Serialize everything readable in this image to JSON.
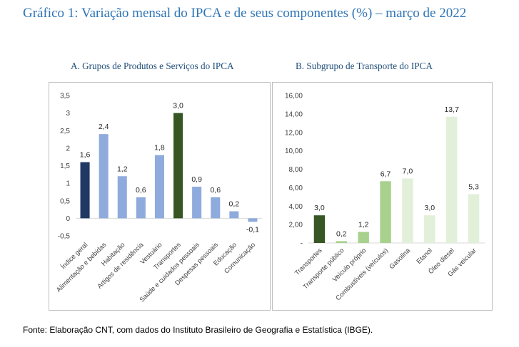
{
  "title": "Gráfico 1: Variação mensal do IPCA e de seus componentes (%) – março de 2022",
  "source": "Fonte: Elaboração CNT, com dados do Instituto Brasileiro de Geografia e Estatística (IBGE).",
  "chart_data": [
    {
      "type": "bar",
      "title": "A. Grupos de Produtos e Serviços do IPCA",
      "xlabel": "",
      "ylabel": "",
      "categories": [
        "Índice geral",
        "Alimentação e bebidas",
        "Habitação",
        "Artigos de residência",
        "Vestuário",
        "Transportes",
        "Saúde e cuidados pessoais",
        "Despesas pessoais",
        "Educação",
        "Comunicação"
      ],
      "values": [
        1.6,
        2.4,
        1.2,
        0.6,
        1.8,
        3.0,
        0.9,
        0.6,
        0.2,
        -0.1
      ],
      "value_labels": [
        "1,6",
        "2,4",
        "1,2",
        "0,6",
        "1,8",
        "3,0",
        "0,9",
        "0,6",
        "0,2",
        "-0,1"
      ],
      "colors": [
        "#1f3864",
        "#8faadc",
        "#8faadc",
        "#8faadc",
        "#8faadc",
        "#375623",
        "#8faadc",
        "#8faadc",
        "#8faadc",
        "#8faadc"
      ],
      "ylim": [
        -0.5,
        3.5
      ],
      "yticks": [
        3.5,
        3,
        2.5,
        2,
        1.5,
        1,
        0.5,
        0,
        -0.5
      ],
      "ytick_labels": [
        "3,5",
        "3",
        "2,5",
        "2",
        "1,5",
        "1",
        "0,5",
        "0",
        "-0,5"
      ],
      "grid": false,
      "legend": "none"
    },
    {
      "type": "bar",
      "title": "B. Subgrupo de Transporte do IPCA",
      "xlabel": "",
      "ylabel": "",
      "categories": [
        "Transportes",
        "Transporte público",
        "Veículo próprio",
        "Combustíveis (veículos)",
        "Gasolina",
        "Etanol",
        "Óleo diesel",
        "Gás veicular"
      ],
      "values": [
        3.0,
        0.2,
        1.2,
        6.7,
        7.0,
        3.0,
        13.7,
        5.3
      ],
      "value_labels": [
        "3,0",
        "0,2",
        "1,2",
        "6,7",
        "7,0",
        "3,0",
        "13,7",
        "5,3"
      ],
      "colors": [
        "#375623",
        "#a9d18e",
        "#a9d18e",
        "#a9d18e",
        "#e2f0d9",
        "#e2f0d9",
        "#e2f0d9",
        "#e2f0d9"
      ],
      "ylim": [
        0,
        16
      ],
      "yticks": [
        16,
        14,
        12,
        10,
        8,
        6,
        4,
        2,
        0
      ],
      "ytick_labels": [
        "16,00",
        "14,00",
        "12,00",
        "10,00",
        "8,00",
        "6,00",
        "4,00",
        "2,00",
        "-"
      ],
      "grid": false,
      "legend": "none"
    }
  ]
}
